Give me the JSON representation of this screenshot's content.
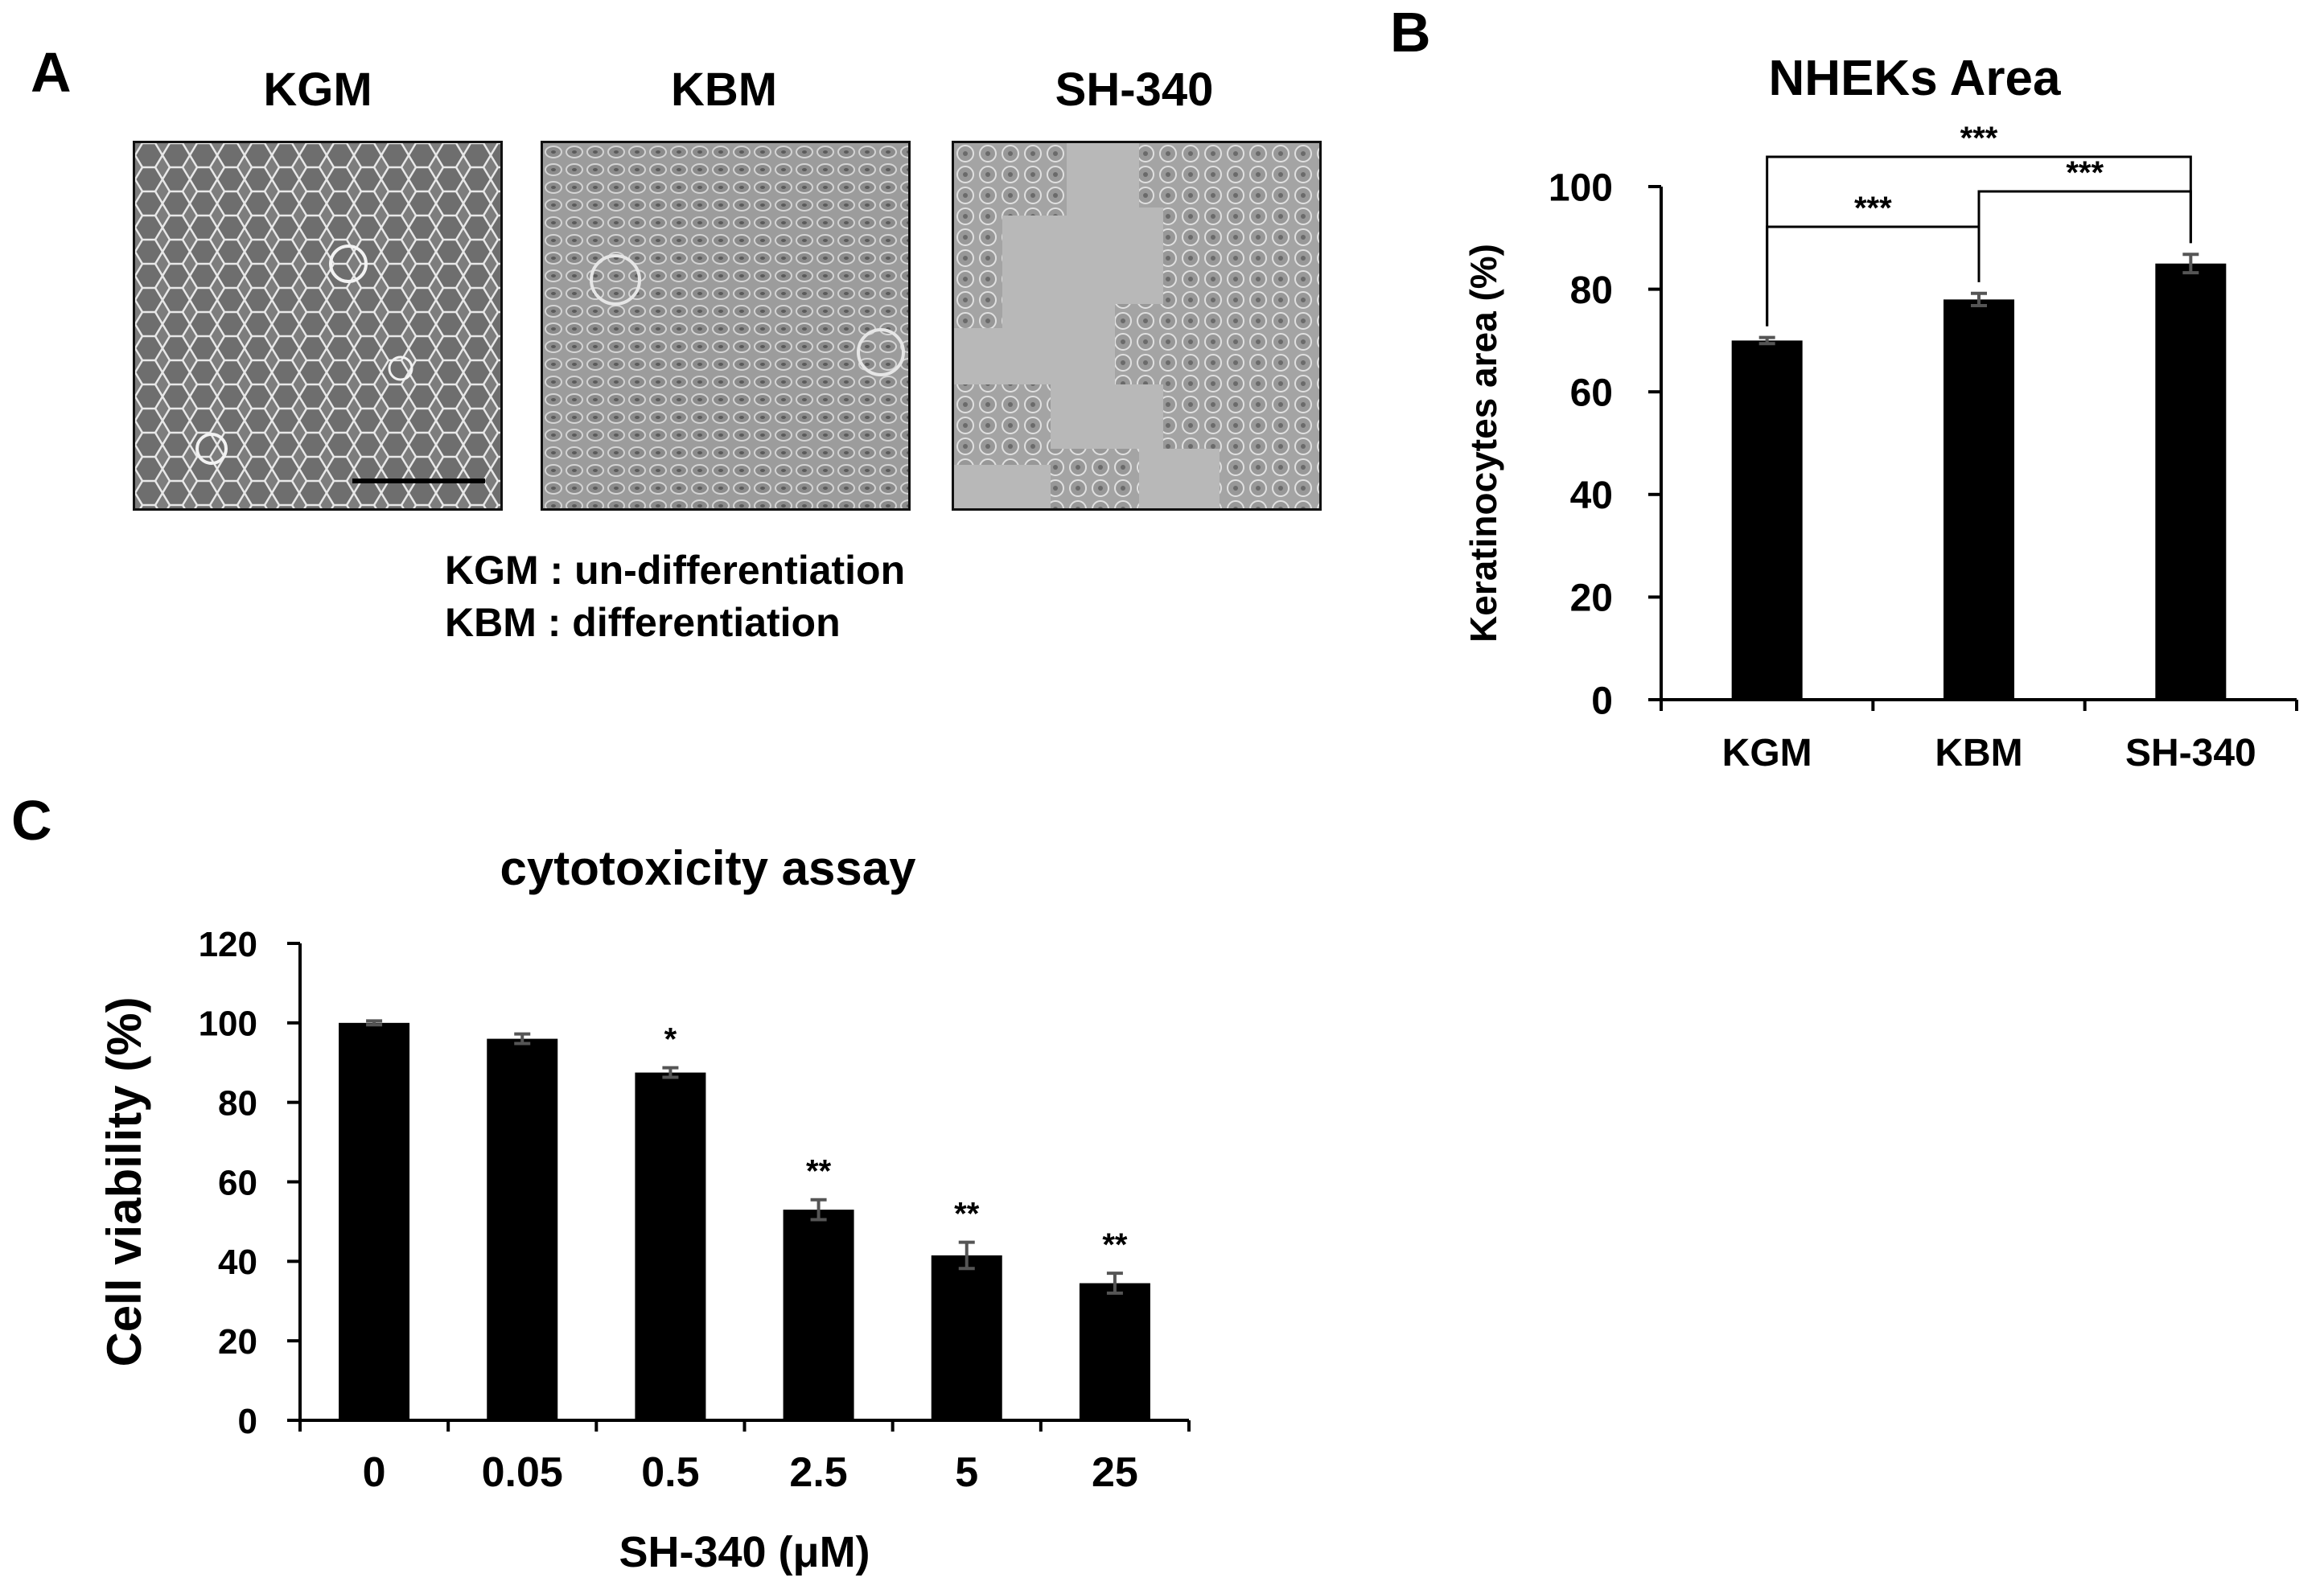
{
  "panels": {
    "a": {
      "letter": "A",
      "images": [
        {
          "label": "KGM"
        },
        {
          "label": "KBM"
        },
        {
          "label": "SH-340"
        }
      ],
      "legend": [
        "KGM : un-differentiation",
        "KBM : differentiation"
      ]
    },
    "b": {
      "letter": "B"
    },
    "c": {
      "letter": "C"
    }
  },
  "chart_data": [
    {
      "type": "bar",
      "panel": "B",
      "title": "NHEKs Area",
      "xlabel": "",
      "ylabel": "Keratinocytes area (%)",
      "categories": [
        "KGM",
        "KBM",
        "SH-340"
      ],
      "values": [
        70,
        78,
        85
      ],
      "errors": [
        0.6,
        1.2,
        1.8
      ],
      "ylim": [
        0,
        100
      ],
      "yticks": [
        0,
        20,
        40,
        60,
        80,
        100
      ],
      "bar_color": "#000000",
      "significance": [
        {
          "from": 0,
          "to": 1,
          "label": "***"
        },
        {
          "from": 1,
          "to": 2,
          "label": "***"
        },
        {
          "from": 0,
          "to": 2,
          "label": "***"
        }
      ]
    },
    {
      "type": "bar",
      "panel": "C",
      "title": "cytotoxicity assay",
      "xlabel": "SH-340 (μM)",
      "ylabel": "Cell viability (%)",
      "categories": [
        "0",
        "0.05",
        "0.5",
        "2.5",
        "5",
        "25"
      ],
      "values": [
        100,
        96,
        87.5,
        53,
        41.5,
        34.5
      ],
      "errors": [
        0.5,
        1.2,
        1.2,
        2.5,
        3.3,
        2.5
      ],
      "ylim": [
        0,
        120
      ],
      "yticks": [
        0,
        20,
        40,
        60,
        80,
        100,
        120
      ],
      "bar_color": "#000000",
      "annotations": [
        "",
        "",
        "*",
        "**",
        "**",
        "**"
      ]
    }
  ]
}
